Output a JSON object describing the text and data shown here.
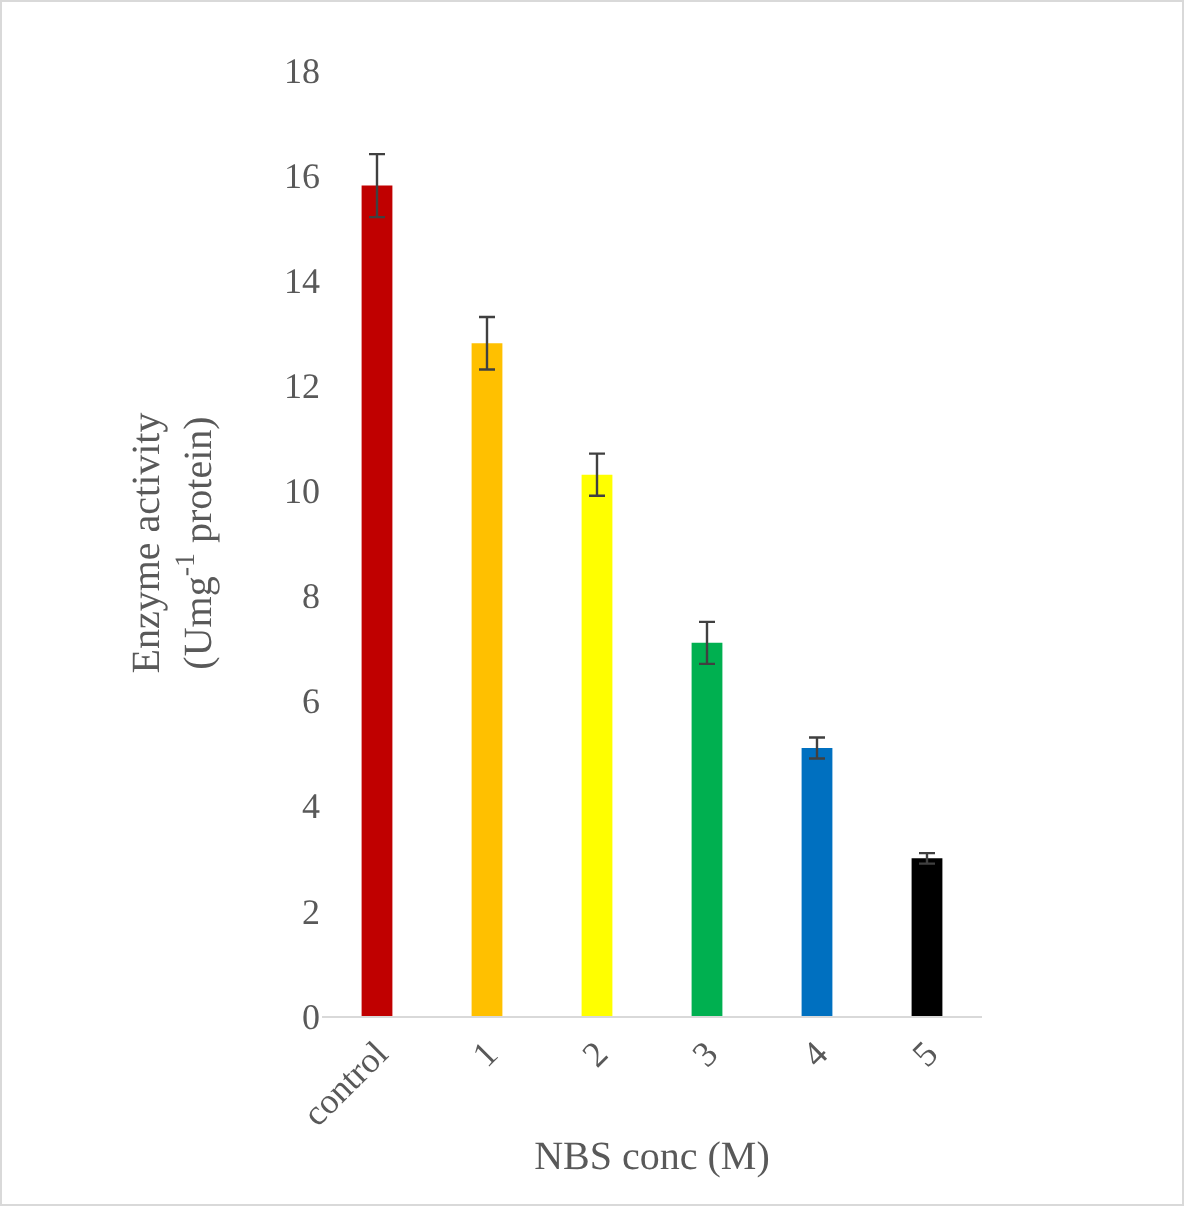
{
  "chart_data": {
    "type": "bar",
    "xlabel": "NBS conc (M)",
    "ylabel": "Enzyme activity\n(Umg$^{-1}$ protein)",
    "categories": [
      "control",
      "1",
      "2",
      "3",
      "4",
      "5"
    ],
    "values": [
      15.8,
      12.8,
      10.3,
      7.1,
      5.1,
      3.0
    ],
    "colors": [
      "#c00000",
      "#ffc000",
      "#ffff00",
      "#00b050",
      "#0070c0",
      "#000000"
    ],
    "errors": [
      0.6,
      0.5,
      0.4,
      0.4,
      0.2,
      0.1
    ],
    "ylim": [
      0,
      18
    ],
    "yticks": [
      0,
      2,
      4,
      6,
      8,
      10,
      12,
      14,
      16,
      18
    ],
    "grid": false
  }
}
